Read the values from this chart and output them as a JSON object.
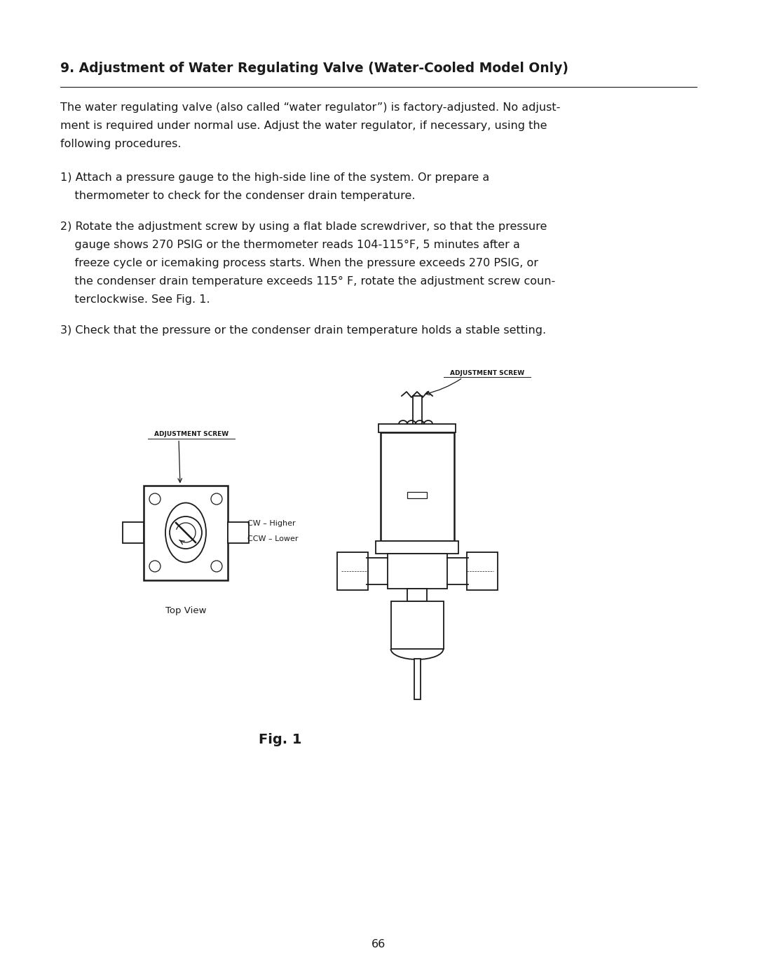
{
  "title": "9. Adjustment of Water Regulating Valve (Water-Cooled Model Only)",
  "body_text": [
    "The water regulating valve (also called “water regulator”) is factory-adjusted. No adjust-",
    "ment is required under normal use. Adjust the water regulator, if necessary, using the",
    "following procedures."
  ],
  "item1_line1": "1) Attach a pressure gauge to the high-side line of the system. Or prepare a",
  "item1_line2": "    thermometer to check for the condenser drain temperature.",
  "item2_lines": [
    "2) Rotate the adjustment screw by using a flat blade screwdriver, so that the pressure",
    "    gauge shows 270 PSIG or the thermometer reads 104-115°F, 5 minutes after a",
    "    freeze cycle or icemaking process starts. When the pressure exceeds 270 PSIG, or",
    "    the condenser drain temperature exceeds 115° F, rotate the adjustment screw coun-",
    "    terclockwise. See Fig. 1."
  ],
  "item3_line": "3) Check that the pressure or the condenser drain temperature holds a stable setting.",
  "fig_caption": "Fig. 1",
  "page_number": "66",
  "text_color": "#1a1a1a",
  "bg_color": "#ffffff"
}
